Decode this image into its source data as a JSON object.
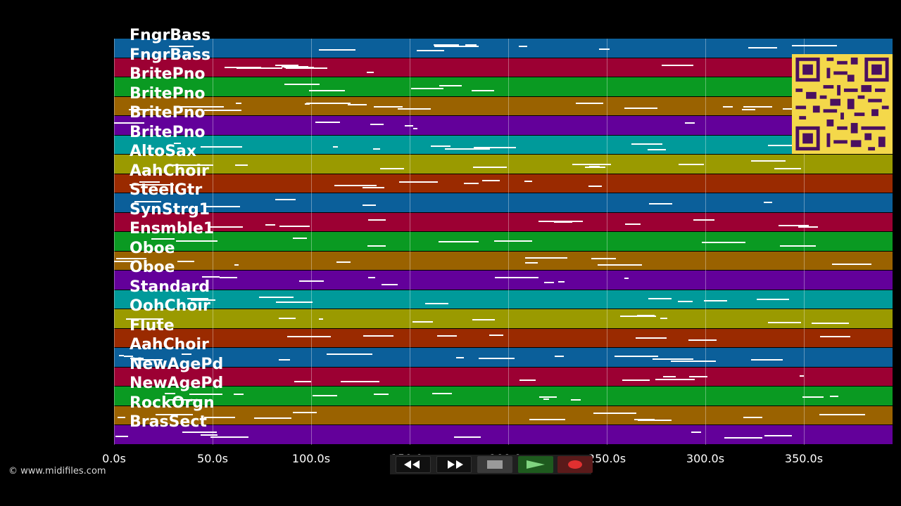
{
  "app": {
    "copyright": "© www.midifiles.com"
  },
  "tracks": [
    {
      "label": "FngrBass",
      "color": "#0b5f9a"
    },
    {
      "label": "FngrBass",
      "color": "#9c0033"
    },
    {
      "label": "BritePno",
      "color": "#0a9a22"
    },
    {
      "label": "BritePno",
      "color": "#9a6200"
    },
    {
      "label": "BritePno",
      "color": "#63009a"
    },
    {
      "label": "BritePno",
      "color": "#009a9a"
    },
    {
      "label": "AltoSax",
      "color": "#9a9a00"
    },
    {
      "label": "AahChoir",
      "color": "#9a2a00"
    },
    {
      "label": "SteelGtr",
      "color": "#0b5f9a"
    },
    {
      "label": "SynStrg1",
      "color": "#9c0033"
    },
    {
      "label": "Ensmble1",
      "color": "#0a9a22"
    },
    {
      "label": "Oboe",
      "color": "#9a6200"
    },
    {
      "label": "Oboe",
      "color": "#63009a"
    },
    {
      "label": "Standard",
      "color": "#009a9a"
    },
    {
      "label": "OohChoir",
      "color": "#9a9a00"
    },
    {
      "label": "Flute",
      "color": "#9a2a00"
    },
    {
      "label": "AahChoir",
      "color": "#0b5f9a"
    },
    {
      "label": "NewAgePd",
      "color": "#9c0033"
    },
    {
      "label": "NewAgePd",
      "color": "#0a9a22"
    },
    {
      "label": "RockOrgn",
      "color": "#9a6200"
    },
    {
      "label": "BrasSect",
      "color": "#63009a"
    }
  ],
  "time_axis": {
    "unit": "s",
    "ticks": [
      "0.0s",
      "50.0s",
      "100.0s",
      "150.0s",
      "200.0s",
      "250.0s",
      "300.0s",
      "350.0s"
    ],
    "tick_values": [
      0,
      50,
      100,
      150,
      200,
      250,
      300,
      350
    ],
    "max_seconds": 395
  },
  "transport": {
    "rewind_icon": "rewind-icon",
    "fast_forward_icon": "fast-forward-icon",
    "stop_icon": "stop-icon",
    "play_icon": "play-icon",
    "record_icon": "record-icon",
    "play_color": "#2e8b2e",
    "record_color": "#e03030"
  },
  "qr_code": {
    "icon": "qr-code-icon",
    "color": "#f4d84a"
  }
}
